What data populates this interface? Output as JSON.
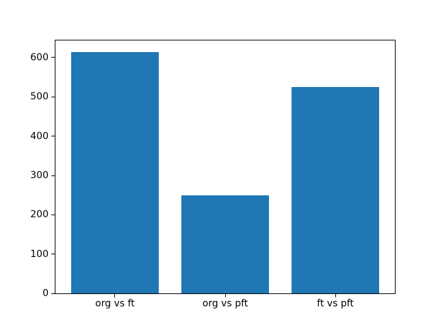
{
  "figure": {
    "background": "#ffffff"
  },
  "chart_data": {
    "type": "bar",
    "categories": [
      "org vs ft",
      "org vs pft",
      "ft vs pft"
    ],
    "values": [
      613,
      250,
      525
    ],
    "title": "",
    "xlabel": "",
    "ylabel": "",
    "yticks": [
      0,
      100,
      200,
      300,
      400,
      500,
      600
    ],
    "ytick_labels": [
      "0",
      "100",
      "200",
      "300",
      "400",
      "500",
      "600"
    ],
    "ylim": [
      0,
      644
    ],
    "xlim": [
      -0.54,
      2.54
    ],
    "bar_width": 0.8,
    "bar_color": "#1f77b4",
    "axis_color": "#000000",
    "grid": false,
    "legend": null
  }
}
